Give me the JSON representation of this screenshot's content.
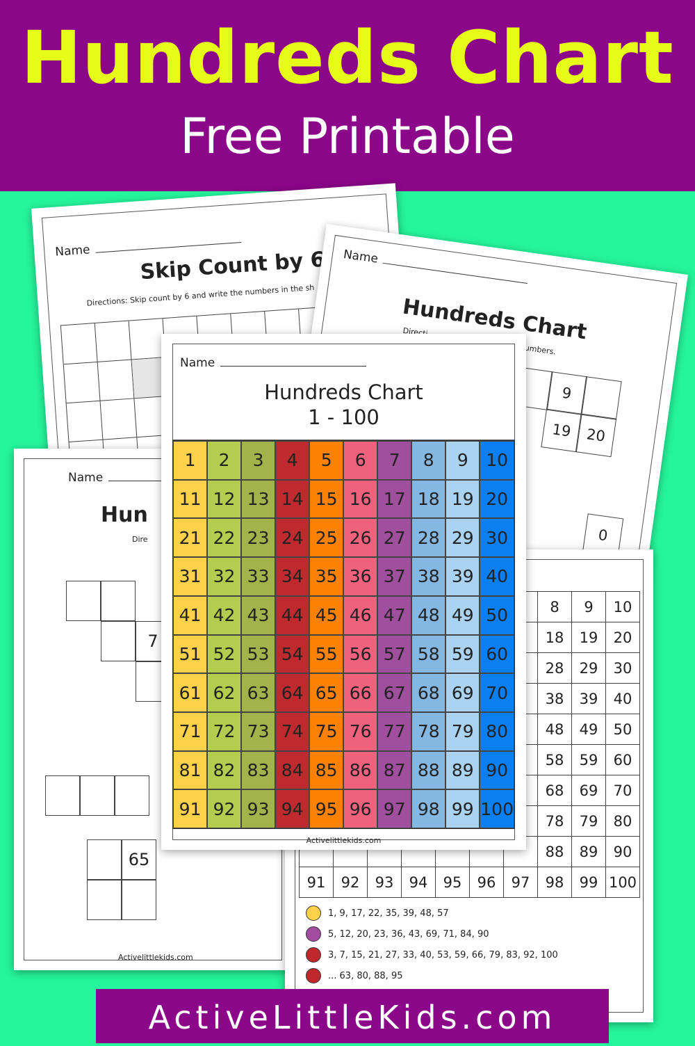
{
  "header": {
    "title": "Hundreds Chart",
    "subtitle": "Free Printable"
  },
  "footer": {
    "site": "ActiveLittleKids.com"
  },
  "sheets": {
    "skip_count": {
      "name_label": "Name",
      "title": "Skip Count by 6",
      "directions": "Directions: Skip count by 6 and write the numbers in the sh"
    },
    "top_right": {
      "name_label": "Name",
      "title": "Hundreds Chart",
      "directions_a": "Directi",
      "directions_b": "numbers.",
      "cells": [
        "9",
        "",
        "19",
        "20"
      ],
      "stray": "0"
    },
    "bottom_left": {
      "name_label": "Name",
      "title": "Hun",
      "directions": "Dire",
      "box_a": "7",
      "box_b": "65",
      "site": "Activelittlekids.com"
    },
    "bottom_right": {
      "legend": [
        {
          "color": "#fdd14a",
          "text": "1, 9, 17, 22, 35, 39, 48, 57"
        },
        {
          "color": "#a24d9f",
          "text": "5, 12, 20, 23, 36, 43, 69, 71, 84, 90"
        },
        {
          "color": "#c0282e",
          "text": "3, 7, 15, 21, 27, 33, 40, 53, 59, 66, 79, 83, 92, 100"
        },
        {
          "color": "#c0282e",
          "text": "... 63, 80, 88, 95"
        }
      ]
    },
    "center": {
      "name_label": "Name",
      "title": "Hundreds Chart",
      "range": "1 - 100",
      "site": "Activelittlekids.com",
      "column_colors": [
        "#fdd14a",
        "#b5cc4f",
        "#a1b34a",
        "#be2a2e",
        "#fd8204",
        "#f0617d",
        "#a04f9e",
        "#85b7e3",
        "#a9d3f0",
        "#0a7ff2"
      ]
    }
  }
}
